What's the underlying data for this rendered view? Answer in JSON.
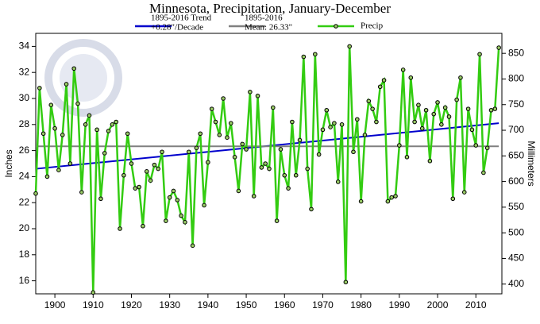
{
  "chart_data": {
    "type": "line",
    "title": "Minnesota, Precipitation, January-December",
    "y_label": "Inches",
    "y2_label": "Millimeters",
    "xlim": [
      1895,
      2016.8
    ],
    "xticks": [
      1900,
      1910,
      1920,
      1930,
      1940,
      1950,
      1960,
      1970,
      1980,
      1990,
      2000,
      2010
    ],
    "ylim": [
      15,
      35
    ],
    "yticks": [
      16,
      18,
      20,
      22,
      24,
      26,
      28,
      30,
      32,
      34
    ],
    "y2lim": [
      381,
      889
    ],
    "y2ticks": [
      400,
      450,
      500,
      550,
      600,
      650,
      700,
      750,
      800,
      850
    ],
    "grid": false,
    "series": [
      {
        "name": [
          "1895-2016 Trend",
          "+0.28\"/Decade"
        ],
        "color": "#0000cc",
        "x": [
          1895,
          2016
        ],
        "values": [
          24.6,
          28.1
        ]
      },
      {
        "name": [
          "1895-2016",
          "Mean: 26.33\""
        ],
        "color": "#808080",
        "x": [
          1895,
          2016
        ],
        "values": [
          26.33,
          26.33
        ]
      },
      {
        "name": [
          "Precip"
        ],
        "color": "#33cc11",
        "marker": true,
        "x": [
          1895,
          1896,
          1897,
          1898,
          1899,
          1900,
          1901,
          1902,
          1903,
          1904,
          1905,
          1906,
          1907,
          1908,
          1909,
          1910,
          1911,
          1912,
          1913,
          1914,
          1915,
          1916,
          1917,
          1918,
          1919,
          1920,
          1921,
          1922,
          1923,
          1924,
          1925,
          1926,
          1927,
          1928,
          1929,
          1930,
          1931,
          1932,
          1933,
          1934,
          1935,
          1936,
          1937,
          1938,
          1939,
          1940,
          1941,
          1942,
          1943,
          1944,
          1945,
          1946,
          1947,
          1948,
          1949,
          1950,
          1951,
          1952,
          1953,
          1954,
          1955,
          1956,
          1957,
          1958,
          1959,
          1960,
          1961,
          1962,
          1963,
          1964,
          1965,
          1966,
          1967,
          1968,
          1969,
          1970,
          1971,
          1972,
          1973,
          1974,
          1975,
          1976,
          1977,
          1978,
          1979,
          1980,
          1981,
          1982,
          1983,
          1984,
          1985,
          1986,
          1987,
          1988,
          1989,
          1990,
          1991,
          1992,
          1993,
          1994,
          1995,
          1996,
          1997,
          1998,
          1999,
          2000,
          2001,
          2002,
          2003,
          2004,
          2005,
          2006,
          2007,
          2008,
          2009,
          2010,
          2011,
          2012,
          2013,
          2014,
          2015,
          2016
        ],
        "values": [
          22.7,
          30.8,
          27.3,
          24.0,
          29.5,
          27.7,
          24.5,
          27.2,
          31.1,
          25.0,
          32.3,
          29.6,
          22.8,
          28.0,
          28.7,
          15.1,
          27.6,
          22.3,
          25.8,
          27.5,
          28.0,
          28.2,
          20.0,
          24.1,
          27.3,
          25.0,
          23.1,
          23.2,
          20.2,
          24.4,
          23.7,
          24.9,
          24.6,
          25.9,
          20.6,
          22.4,
          22.9,
          22.2,
          21.0,
          20.5,
          25.9,
          18.7,
          26.2,
          27.3,
          21.8,
          25.1,
          29.2,
          28.2,
          27.2,
          30.0,
          27.0,
          28.1,
          25.5,
          22.9,
          26.5,
          26.1,
          30.5,
          22.5,
          30.2,
          24.7,
          25.0,
          24.6,
          29.3,
          20.6,
          26.1,
          24.1,
          23.1,
          28.2,
          24.1,
          26.8,
          33.2,
          24.6,
          21.5,
          33.4,
          25.7,
          27.6,
          29.1,
          27.8,
          28.1,
          23.6,
          28.0,
          15.9,
          34.0,
          25.9,
          28.4,
          22.1,
          27.2,
          29.8,
          29.2,
          28.2,
          30.9,
          31.4,
          22.1,
          22.4,
          22.5,
          26.4,
          32.2,
          25.5,
          31.6,
          28.2,
          29.5,
          27.7,
          29.1,
          25.2,
          28.8,
          29.7,
          28.0,
          29.3,
          28.6,
          22.3,
          29.9,
          31.6,
          22.8,
          29.2,
          27.6,
          26.4,
          33.4,
          24.3,
          26.2,
          29.1,
          29.2,
          33.9
        ]
      }
    ]
  }
}
